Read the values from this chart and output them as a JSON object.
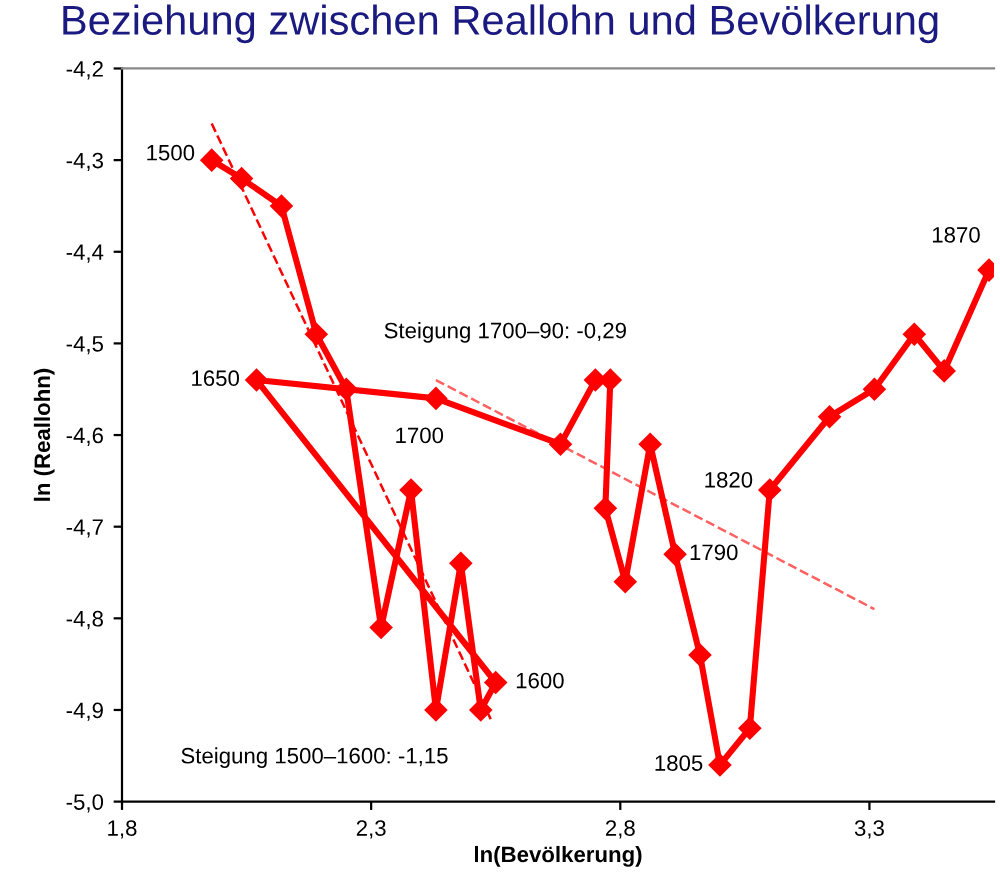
{
  "chart_data": {
    "type": "line",
    "title": "Beziehung zwischen Reallohn und Bevölkerung",
    "xlabel": "ln(Bevölkerung)",
    "ylabel": "ln (Reallohn)",
    "xlim": [
      1.8,
      3.55
    ],
    "ylim": [
      -5.0,
      -4.2
    ],
    "xticks": [
      {
        "value": 1.8,
        "label": "1,8"
      },
      {
        "value": 2.3,
        "label": "2,3"
      },
      {
        "value": 2.8,
        "label": "2,8"
      },
      {
        "value": 3.3,
        "label": "3,3"
      }
    ],
    "yticks": [
      {
        "value": -5.0,
        "label": "-5,0"
      },
      {
        "value": -4.9,
        "label": "-4,9"
      },
      {
        "value": -4.8,
        "label": "-4,8"
      },
      {
        "value": -4.7,
        "label": "-4,7"
      },
      {
        "value": -4.6,
        "label": "-4,6"
      },
      {
        "value": -4.5,
        "label": "-4,5"
      },
      {
        "value": -4.4,
        "label": "-4,4"
      },
      {
        "value": -4.3,
        "label": "-4,3"
      },
      {
        "value": -4.2,
        "label": "-4,2"
      }
    ],
    "grid": false,
    "legend": false,
    "marker": "diamond",
    "line_style": "solid",
    "series": [
      {
        "color": "#ff0000",
        "x": [
          1.98,
          2.04,
          2.12,
          2.19,
          2.25,
          2.32,
          2.38,
          2.43,
          2.48,
          2.52,
          2.55,
          2.07,
          2.43,
          2.68,
          2.75,
          2.78,
          2.77,
          2.81,
          2.86,
          2.91,
          2.96,
          3.0,
          3.06,
          3.1,
          3.22,
          3.31,
          3.39,
          3.45,
          3.54
        ],
        "values": [
          -4.3,
          -4.32,
          -4.35,
          -4.49,
          -4.55,
          -4.81,
          -4.66,
          -4.9,
          -4.74,
          -4.9,
          -4.87,
          -4.54,
          -4.56,
          -4.61,
          -4.54,
          -4.54,
          -4.68,
          -4.76,
          -4.61,
          -4.73,
          -4.84,
          -4.96,
          -4.92,
          -4.66,
          -4.58,
          -4.55,
          -4.49,
          -4.53,
          -4.42
        ]
      },
      {
        "type": "line",
        "color": "#ff0000",
        "line_style": "dashed",
        "marker": "none",
        "x": [
          1.98,
          2.54
        ],
        "values": [
          -4.26,
          -4.91
        ]
      },
      {
        "type": "line",
        "color": "#ff6060",
        "line_style": "dashed",
        "marker": "none",
        "x": [
          2.43,
          3.31
        ],
        "values": [
          -4.54,
          -4.79
        ]
      }
    ],
    "annotations": [
      {
        "text": "1500",
        "x": 1.98,
        "y": -4.3
      },
      {
        "text": "1650",
        "x": 2.07,
        "y": -4.54
      },
      {
        "text": "1700",
        "x": 2.43,
        "y": -4.56
      },
      {
        "text": "1600",
        "x": 2.55,
        "y": -4.87
      },
      {
        "text": "1790",
        "x": 2.91,
        "y": -4.73
      },
      {
        "text": "1805",
        "x": 3.0,
        "y": -4.96
      },
      {
        "text": "1820",
        "x": 3.1,
        "y": -4.66
      },
      {
        "text": "1870",
        "x": 3.54,
        "y": -4.42
      },
      "Steigung 1700–90: -0,29",
      "Steigung 1500–1600: -1,15"
    ]
  }
}
